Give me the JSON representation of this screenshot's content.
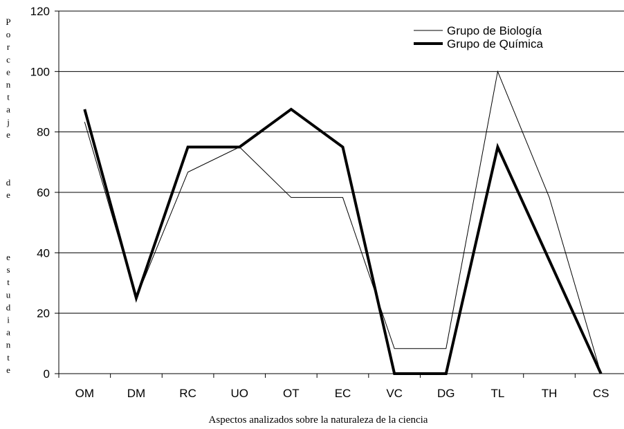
{
  "chart_data": {
    "type": "line",
    "categories": [
      "OM",
      "DM",
      "RC",
      "UO",
      "OT",
      "EC",
      "VC",
      "DG",
      "TL",
      "TH",
      "CS"
    ],
    "series": [
      {
        "name": "Grupo de Biología",
        "values": [
          83.3,
          25,
          66.7,
          75,
          58.3,
          58.3,
          8.3,
          8.3,
          100,
          58.3,
          0
        ],
        "color": "#000000",
        "style": "thin"
      },
      {
        "name": "Grupo de Química",
        "values": [
          87.5,
          25,
          75,
          75,
          87.5,
          75,
          0,
          0,
          75,
          37.5,
          0
        ],
        "color": "#000000",
        "style": "thick"
      }
    ],
    "ylim": [
      0,
      120
    ],
    "yticks": [
      0,
      20,
      40,
      60,
      80,
      100,
      120
    ],
    "xlabel": "Aspectos analizados sobre la naturaleza de la ciencia",
    "ylabel_lines": [
      "P o r c e n t a j e",
      "d e",
      "e s t u d i a n t e"
    ],
    "grid": "horizontal",
    "legend_position": "top-right"
  }
}
